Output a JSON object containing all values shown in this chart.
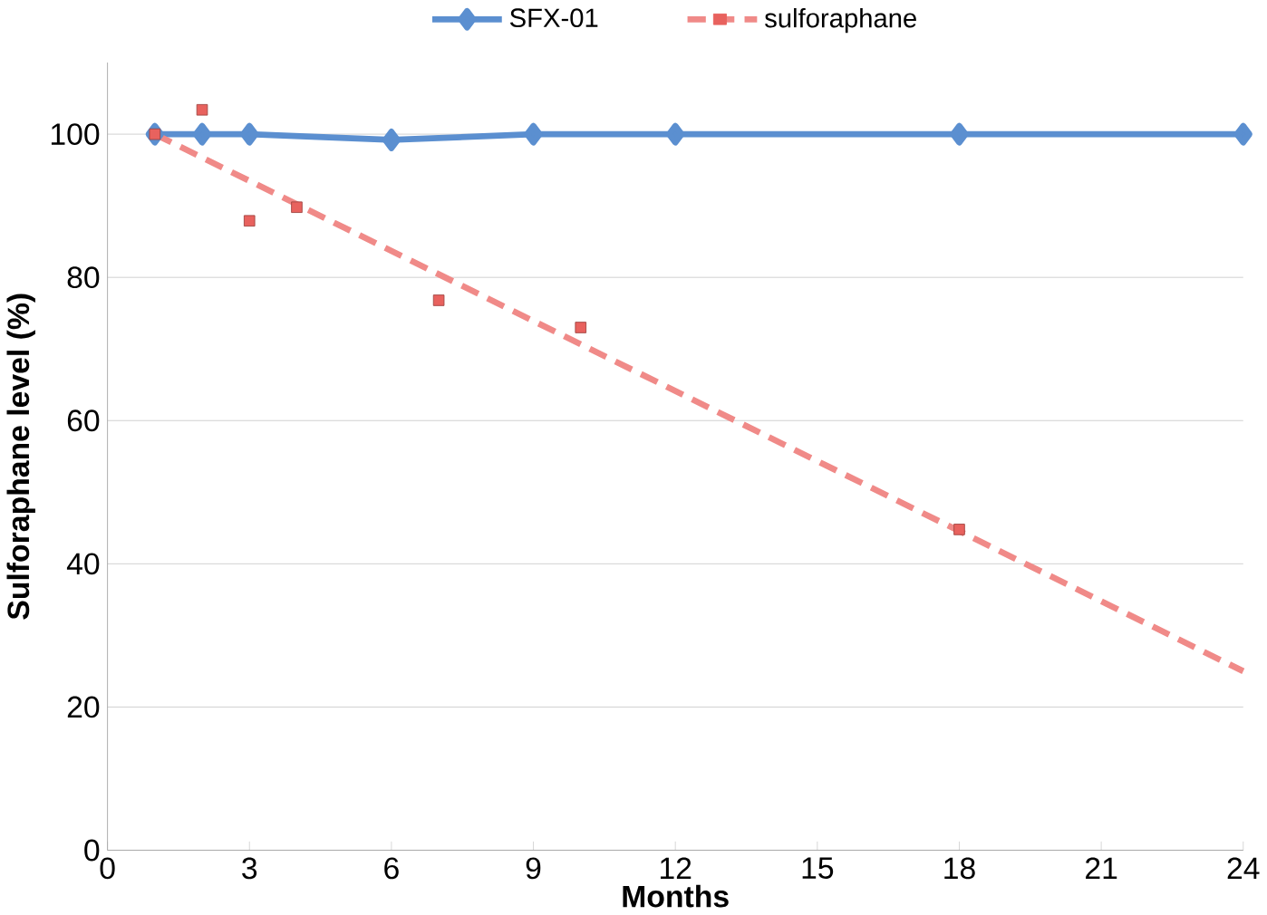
{
  "chart_data": {
    "type": "line",
    "xlabel": "Months",
    "ylabel": "Sulforaphane level (%)",
    "xlim": [
      0,
      24
    ],
    "xticks": [
      0,
      3,
      6,
      9,
      12,
      15,
      18,
      21,
      24
    ],
    "ylim": [
      0,
      110
    ],
    "yticks": [
      0,
      20,
      40,
      60,
      80,
      100
    ],
    "grid": "y",
    "legend": "top",
    "series": [
      {
        "name": "SFX-01",
        "color": "#5b8fd0",
        "marker": "diamond",
        "line_style": "solid",
        "x": [
          1,
          2,
          3,
          6,
          9,
          12,
          18,
          24
        ],
        "values": [
          100,
          100,
          100,
          99.2,
          100,
          100,
          100,
          100
        ]
      },
      {
        "name": "sulforaphane",
        "type": "scatter",
        "color": "#e8625e",
        "marker": "square",
        "x": [
          1,
          2,
          3,
          4,
          7,
          10,
          18
        ],
        "values": [
          100,
          103.4,
          87.9,
          89.8,
          76.8,
          73,
          44.8
        ]
      },
      {
        "color": "#f08a88",
        "marker": "none",
        "line_style": "dashed",
        "x": [
          1,
          24
        ],
        "values": [
          100,
          25
        ]
      }
    ]
  }
}
